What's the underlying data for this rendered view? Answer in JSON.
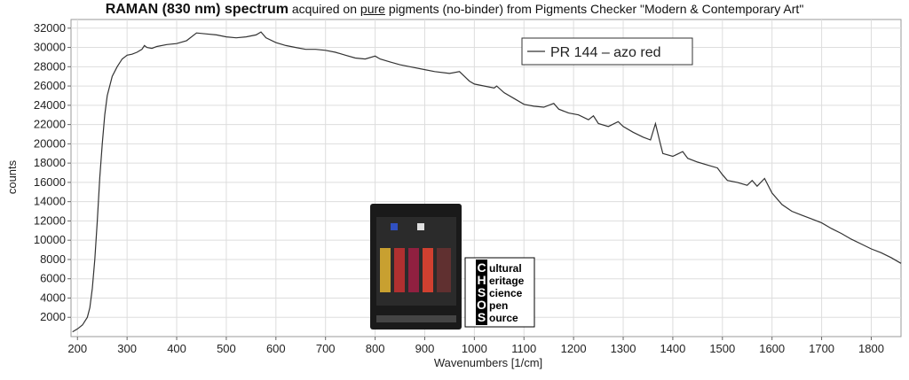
{
  "chart_data": {
    "type": "line",
    "title": {
      "bold": "RAMAN (830 nm) spectrum",
      "pre": " acquired on ",
      "underlined": "pure",
      "post": " pigments (no-binder) from Pigments Checker \"Modern & Contemporary Art\""
    },
    "x_label": "Wavenumbers [1/cm]",
    "y_label": "counts",
    "x": [
      190,
      200,
      210,
      220,
      225,
      230,
      235,
      240,
      245,
      250,
      255,
      260,
      270,
      280,
      290,
      300,
      310,
      320,
      330,
      335,
      340,
      350,
      360,
      380,
      400,
      420,
      440,
      460,
      480,
      500,
      520,
      540,
      560,
      570,
      580,
      600,
      620,
      640,
      660,
      680,
      700,
      720,
      740,
      760,
      780,
      800,
      810,
      830,
      850,
      870,
      900,
      920,
      950,
      970,
      980,
      990,
      1000,
      1020,
      1040,
      1045,
      1060,
      1080,
      1100,
      1120,
      1140,
      1160,
      1170,
      1190,
      1210,
      1230,
      1240,
      1250,
      1270,
      1290,
      1300,
      1320,
      1340,
      1355,
      1365,
      1375,
      1380,
      1400,
      1420,
      1430,
      1450,
      1470,
      1490,
      1500,
      1510,
      1530,
      1550,
      1560,
      1570,
      1585,
      1600,
      1620,
      1640,
      1660,
      1680,
      1700,
      1720,
      1740,
      1760,
      1780,
      1800,
      1820,
      1840,
      1860
    ],
    "series": [
      {
        "name": "PR 144 – azo red",
        "color": "#333333",
        "values": [
          500,
          800,
          1200,
          2000,
          3000,
          5000,
          8000,
          12000,
          16500,
          20000,
          23000,
          25000,
          27000,
          28000,
          28800,
          29200,
          29300,
          29500,
          29800,
          30200,
          30000,
          29900,
          30100,
          30300,
          30400,
          30700,
          31500,
          31400,
          31300,
          31100,
          31000,
          31100,
          31300,
          31600,
          31000,
          30500,
          30200,
          30000,
          29800,
          29800,
          29700,
          29500,
          29200,
          28900,
          28800,
          29100,
          28800,
          28500,
          28200,
          28000,
          27700,
          27500,
          27300,
          27500,
          27000,
          26500,
          26200,
          26000,
          25800,
          26000,
          25300,
          24700,
          24100,
          23900,
          23800,
          24200,
          23600,
          23200,
          23000,
          22500,
          22900,
          22100,
          21800,
          22300,
          21800,
          21200,
          20700,
          20400,
          22100,
          20000,
          19000,
          18700,
          19200,
          18500,
          18100,
          17800,
          17500,
          16800,
          16200,
          16000,
          15700,
          16200,
          15600,
          16400,
          14900,
          13700,
          13000,
          12600,
          12200,
          11800,
          11200,
          10700,
          10100,
          9600,
          9100,
          8700,
          8200,
          7600
        ]
      }
    ],
    "xlim": [
      187,
      1860
    ],
    "ylim": [
      0,
      32900
    ],
    "xticks": [
      200,
      300,
      400,
      500,
      600,
      700,
      800,
      900,
      1000,
      1100,
      1200,
      1300,
      1400,
      1500,
      1600,
      1700,
      1800
    ],
    "yticks": [
      2000,
      4000,
      6000,
      8000,
      10000,
      12000,
      14000,
      16000,
      18000,
      20000,
      22000,
      24000,
      26000,
      28000,
      30000,
      32000
    ],
    "grid": true
  },
  "logo": {
    "letters": [
      "C",
      "H",
      "S",
      "O",
      "S"
    ],
    "words": [
      "ultural",
      "eritage",
      "cience",
      "pen",
      "ource"
    ]
  }
}
